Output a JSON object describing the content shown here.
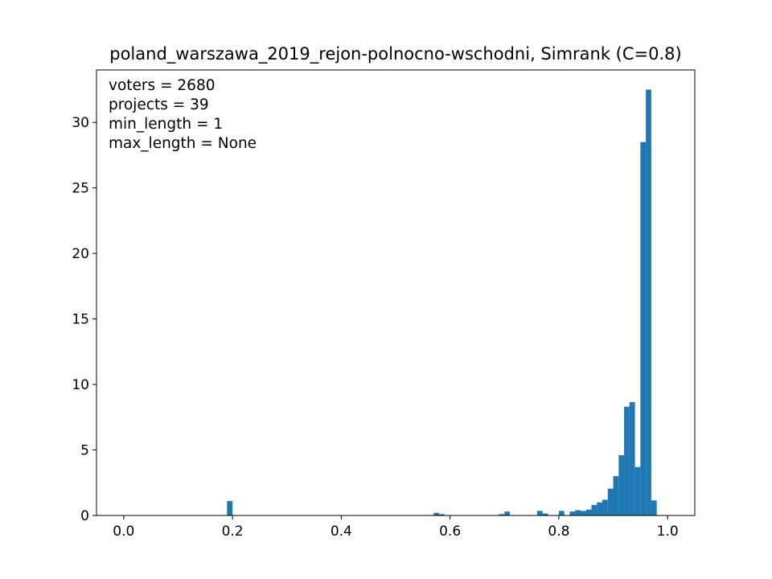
{
  "chart_data": {
    "type": "bar",
    "title": "poland_warszawa_2019_rejon-polnocno-wschodni, Simrank (C=0.8)",
    "xlabel": "",
    "ylabel": "",
    "xlim": [
      -0.05,
      1.05
    ],
    "ylim": [
      0,
      34
    ],
    "xticks": [
      0.0,
      0.2,
      0.4,
      0.6,
      0.8,
      1.0
    ],
    "xtick_labels": [
      "0.0",
      "0.2",
      "0.4",
      "0.6",
      "0.8",
      "1.0"
    ],
    "yticks": [
      0,
      5,
      10,
      15,
      20,
      25,
      30
    ],
    "ytick_labels": [
      "0",
      "5",
      "10",
      "15",
      "20",
      "25",
      "30"
    ],
    "grid": false,
    "bar_color": "#1f77b4",
    "bin_width": 0.01,
    "annotations": [
      "voters = 2680",
      "projects = 39",
      "min_length = 1",
      "max_length = None"
    ],
    "bars": [
      {
        "x": 0.19,
        "value": 1.1
      },
      {
        "x": 0.57,
        "value": 0.2
      },
      {
        "x": 0.58,
        "value": 0.1
      },
      {
        "x": 0.69,
        "value": 0.1
      },
      {
        "x": 0.7,
        "value": 0.3
      },
      {
        "x": 0.76,
        "value": 0.35
      },
      {
        "x": 0.77,
        "value": 0.15
      },
      {
        "x": 0.8,
        "value": 0.35
      },
      {
        "x": 0.82,
        "value": 0.3
      },
      {
        "x": 0.83,
        "value": 0.4
      },
      {
        "x": 0.84,
        "value": 0.35
      },
      {
        "x": 0.85,
        "value": 0.45
      },
      {
        "x": 0.86,
        "value": 0.8
      },
      {
        "x": 0.87,
        "value": 1.0
      },
      {
        "x": 0.88,
        "value": 1.2
      },
      {
        "x": 0.89,
        "value": 2.05
      },
      {
        "x": 0.9,
        "value": 3.0
      },
      {
        "x": 0.91,
        "value": 4.6
      },
      {
        "x": 0.92,
        "value": 8.3
      },
      {
        "x": 0.93,
        "value": 8.65
      },
      {
        "x": 0.94,
        "value": 3.7
      },
      {
        "x": 0.95,
        "value": 28.5
      },
      {
        "x": 0.96,
        "value": 32.5
      },
      {
        "x": 0.97,
        "value": 1.15
      }
    ]
  }
}
